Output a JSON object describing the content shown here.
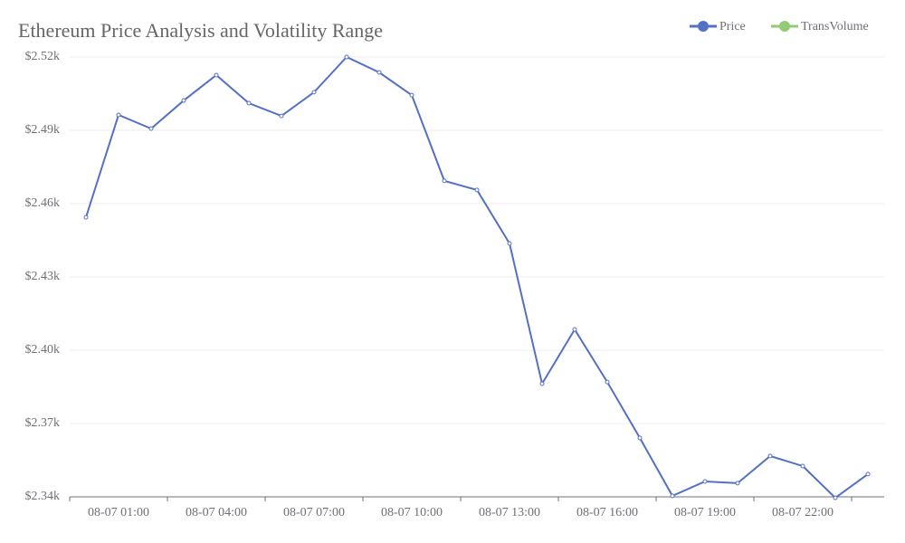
{
  "chart_data": {
    "type": "line",
    "title": "Ethereum Price Analysis and Volatility Range",
    "categories": [
      null,
      "08-07 01:00",
      null,
      null,
      "08-07 04:00",
      null,
      null,
      "08-07 07:00",
      null,
      null,
      "08-07 10:00",
      null,
      null,
      "08-07 13:00",
      null,
      null,
      "08-07 16:00",
      null,
      null,
      "08-07 19:00",
      null,
      null,
      "08-07 22:00",
      null,
      null
    ],
    "series": [
      {
        "name": "Price",
        "color": "#5470c6",
        "values": [
          2454.4,
          2496.3,
          2490.7,
          2502.2,
          2512.6,
          2501.1,
          2495.9,
          2505.6,
          2520,
          2513.7,
          2504.4,
          2469.3,
          2465.6,
          2443.7,
          2386.3,
          2408.5,
          2387,
          2364.1,
          2340.4,
          2346.3,
          2345.6,
          2356.7,
          2352.6,
          2339.6,
          2349.3
        ]
      },
      {
        "name": "TransVolume",
        "color": "#91cc75",
        "values": [
          null,
          null,
          null,
          null,
          null,
          null,
          null,
          null,
          null,
          null,
          null,
          null,
          null,
          null,
          null,
          null,
          null,
          null,
          null,
          null,
          null,
          null,
          null,
          null,
          null
        ]
      }
    ],
    "ylim": [
      2340,
      2520
    ],
    "yticks": [
      {
        "value": 2340,
        "label": "$2.34k"
      },
      {
        "value": 2370,
        "label": "$2.37k"
      },
      {
        "value": 2400,
        "label": "$2.40k"
      },
      {
        "value": 2430,
        "label": "$2.43k"
      },
      {
        "value": 2460,
        "label": "$2.46k"
      },
      {
        "value": 2490,
        "label": "$2.49k"
      },
      {
        "value": 2520,
        "label": "$2.52k"
      }
    ],
    "grid": true,
    "legend": "top-right"
  }
}
